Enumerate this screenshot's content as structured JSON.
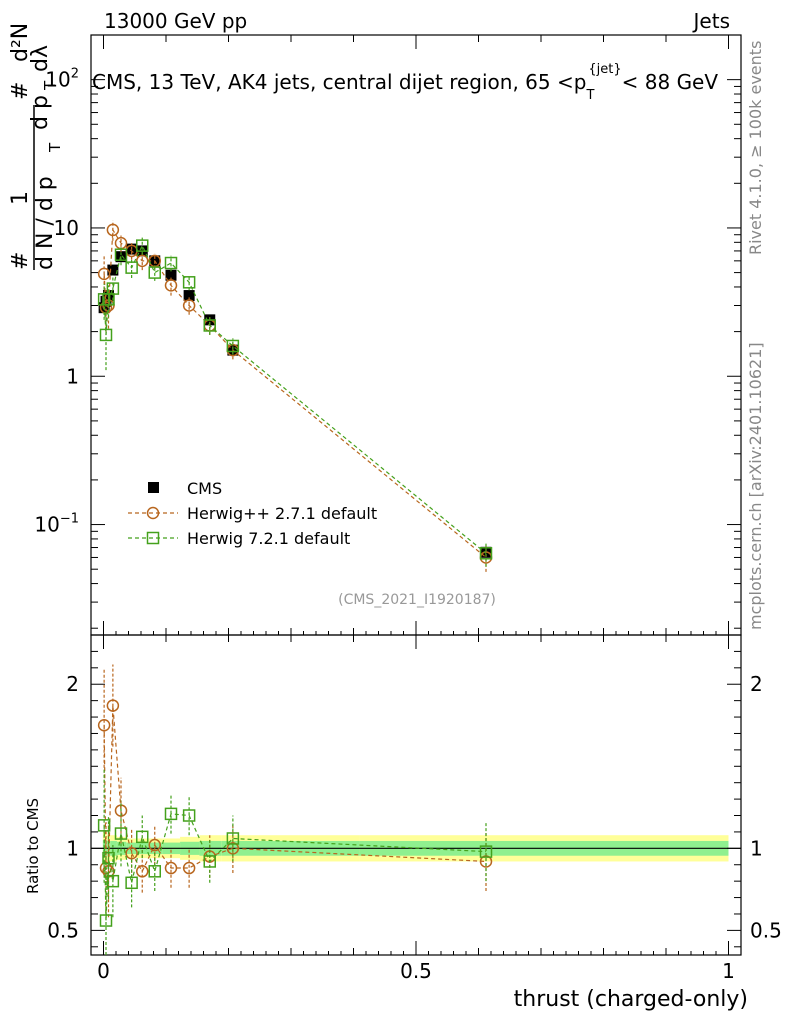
{
  "header": {
    "left": "13000 GeV pp",
    "right": "Jets"
  },
  "side_labels": {
    "rivet": "Rivet 4.1.0, ≥ 100k events",
    "mcplots": "mcplots.cern.ch [arXiv:2401.10621]"
  },
  "chart_data": {
    "type": "scatter",
    "title": "CMS, 13 TeV, AK4 jets, central dijet region, 65 < p_T^{jet} < 88 GeV",
    "title_parts": {
      "main": "CMS, 13 TeV, AK4 jets, central dijet region, 65 <",
      "p": "p",
      "sub": "T",
      "sup": "{jet}",
      "tail": "< 88 GeV"
    },
    "analysis_id": "(CMS_2021_I1920187)",
    "xlabel": "thrust (charged-only)",
    "ylabel_parts": {
      "one": "1",
      "dN": "d N / d p",
      "sub_T": "T",
      "hash": "#",
      "numer": "d²N",
      "denom": "d p",
      "dlambda": "dλ"
    },
    "ratio_ylabel": "Ratio to CMS",
    "xlim": [
      -0.02,
      1.02
    ],
    "ylim": [
      0.018,
      200
    ],
    "ylog": true,
    "ratio_ylim": [
      0.35,
      2.3
    ],
    "x_ticks": [
      0,
      0.5,
      1
    ],
    "x_tick_labels": [
      "0",
      "0.5",
      "1"
    ],
    "y_ticks": [
      {
        "v": 0.1,
        "base": "10",
        "exp": "−1"
      },
      {
        "v": 1,
        "base": "1",
        "exp": ""
      },
      {
        "v": 10,
        "base": "10",
        "exp": ""
      },
      {
        "v": 100,
        "base": "10",
        "exp": "2"
      }
    ],
    "ratio_ticks": [
      0.5,
      1,
      2
    ],
    "ratio_tick_labels": [
      "0.5",
      "1",
      "2"
    ],
    "legend_position": "middle-left",
    "x": [
      0.001,
      0.004,
      0.008,
      0.015,
      0.028,
      0.045,
      0.062,
      0.082,
      0.108,
      0.137,
      0.17,
      0.207,
      0.612
    ],
    "ratio_band_inner": [
      0.955,
      1.045
    ],
    "ratio_band_outer": [
      0.92,
      1.08
    ],
    "series": [
      {
        "name": "CMS",
        "marker": "filled-square",
        "color": "#000000",
        "values": [
          2.9,
          3.2,
          3.5,
          5.2,
          6.4,
          7.2,
          7.0,
          6.0,
          4.8,
          3.5,
          2.4,
          1.5,
          0.065
        ],
        "errors": [
          0.3,
          0.3,
          0.3,
          0.4,
          0.4,
          0.4,
          0.4,
          0.3,
          0.3,
          0.2,
          0.15,
          0.1,
          0.004
        ]
      },
      {
        "name": "Herwig++ 2.7.1 default",
        "marker": "open-circle",
        "color": "#b8661e",
        "values": [
          4.9,
          2.9,
          3.0,
          9.7,
          7.9,
          7.0,
          6.0,
          6.0,
          4.1,
          3.0,
          2.2,
          1.5,
          0.06
        ],
        "errors": [
          1.6,
          0.9,
          0.9,
          1.5,
          1.0,
          0.9,
          0.8,
          0.7,
          0.6,
          0.4,
          0.3,
          0.2,
          0.012
        ],
        "ratio": [
          1.75,
          0.88,
          0.86,
          1.87,
          1.23,
          0.97,
          0.86,
          1.02,
          0.88,
          0.88,
          0.95,
          1.0,
          0.92
        ],
        "ratio_err": [
          0.35,
          0.28,
          0.28,
          0.25,
          0.2,
          0.15,
          0.13,
          0.12,
          0.12,
          0.12,
          0.13,
          0.15,
          0.18
        ]
      },
      {
        "name": "Herwig 7.2.1 default",
        "marker": "open-square",
        "color": "#44a11c",
        "values": [
          3.3,
          1.9,
          3.3,
          3.9,
          6.6,
          5.4,
          7.6,
          5.0,
          5.8,
          4.3,
          2.2,
          1.6,
          0.064
        ],
        "errors": [
          0.9,
          0.8,
          0.8,
          0.9,
          1.0,
          0.8,
          1.0,
          0.6,
          0.7,
          0.5,
          0.3,
          0.2,
          0.012
        ],
        "ratio": [
          1.14,
          0.56,
          0.94,
          0.8,
          1.09,
          0.79,
          1.07,
          0.86,
          1.21,
          1.2,
          0.92,
          1.06,
          0.98
        ],
        "ratio_err": [
          0.35,
          0.4,
          0.25,
          0.22,
          0.2,
          0.15,
          0.13,
          0.12,
          0.12,
          0.12,
          0.13,
          0.14,
          0.18
        ]
      }
    ]
  }
}
